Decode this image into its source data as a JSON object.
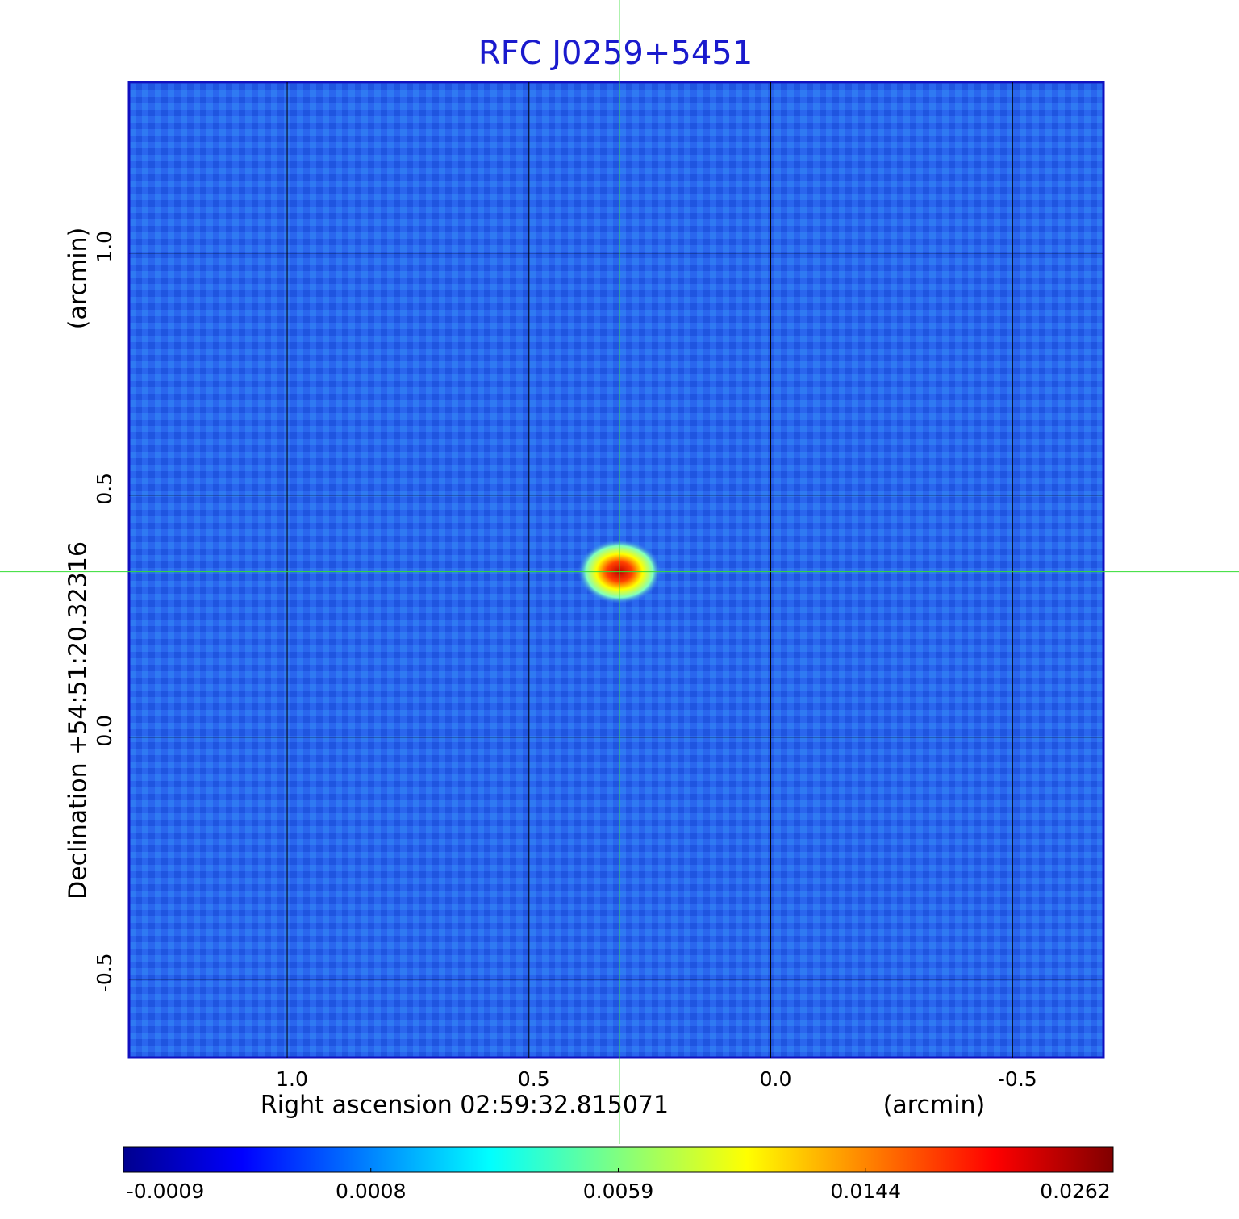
{
  "chart_data": {
    "type": "image",
    "title": "RFC J0259+5451",
    "x_label": "Right ascension  02:59:32.815071",
    "x_unit": "(arcmin)",
    "y_label": "Declination  +54:51:20.32316",
    "y_unit": "(arcmin)",
    "xlim": [
      1.327,
      -0.688
    ],
    "ylim": [
      -0.662,
      1.353
    ],
    "xticks": [
      {
        "value": 1,
        "label": "1.0"
      },
      0.5,
      {
        "value": 0,
        "label": "0.0"
      },
      -0.5
    ],
    "yticks": [
      -0.5,
      {
        "value": 0,
        "label": "0.0"
      },
      0.5,
      {
        "value": 1,
        "label": "1.0"
      }
    ],
    "grid": true,
    "crosshair": {
      "x": 0.313,
      "y": 0.342,
      "color": "#33dd33"
    },
    "colorbar": {
      "colormap": "jet",
      "ticks": [
        -0.0009,
        0.0008,
        0.0059,
        0.0144,
        0.0262
      ]
    }
  }
}
